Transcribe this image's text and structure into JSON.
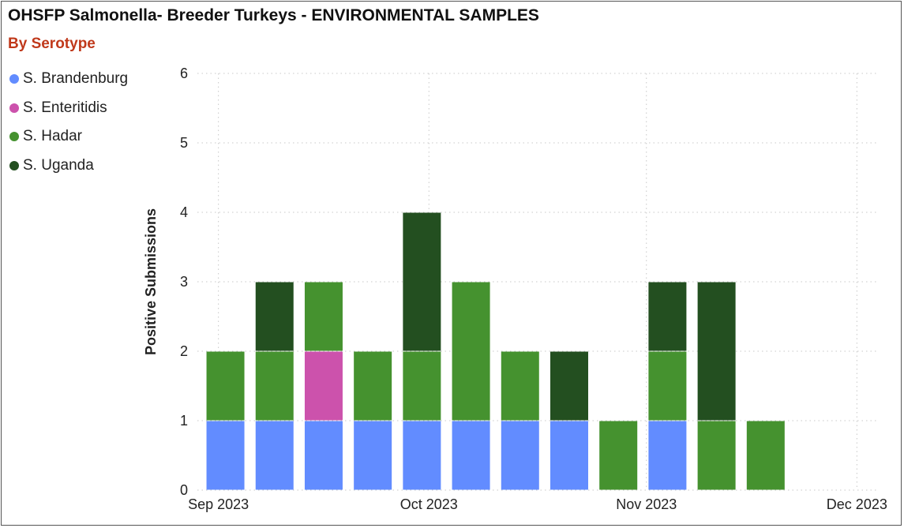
{
  "title": "OHSFP Salmonella- Breeder Turkeys - ENVIRONMENTAL SAMPLES",
  "subtitle": "By Serotype",
  "colors": {
    "subtitle": "#c0391b",
    "gridline": "#c8c8c8"
  },
  "legend": [
    {
      "label": "S. Brandenburg",
      "color": "#628cff"
    },
    {
      "label": "S. Enteritidis",
      "color": "#cc52ac"
    },
    {
      "label": "S. Hadar",
      "color": "#45922f"
    },
    {
      "label": "S. Uganda",
      "color": "#234f20"
    }
  ],
  "chart_data": {
    "type": "bar",
    "stacked": true,
    "title": "OHSFP Salmonella- Breeder Turkeys - ENVIRONMENTAL SAMPLES",
    "subtitle": "By Serotype",
    "xlabel": "",
    "ylabel": "Positive Submissions",
    "ylim": [
      0,
      6
    ],
    "yticks": [
      0,
      1,
      2,
      3,
      4,
      5,
      6
    ],
    "x_ticks": [
      {
        "date": "2023-09-01",
        "label": "Sep 2023"
      },
      {
        "date": "2023-10-01",
        "label": "Oct 2023"
      },
      {
        "date": "2023-11-01",
        "label": "Nov 2023"
      },
      {
        "date": "2023-12-01",
        "label": "Dec 2023"
      }
    ],
    "xlim": [
      "2023-08-29",
      "2023-12-04"
    ],
    "grid": true,
    "legend_position": "top-left",
    "x": [
      "2023-09-02",
      "2023-09-09",
      "2023-09-16",
      "2023-09-23",
      "2023-09-30",
      "2023-10-07",
      "2023-10-14",
      "2023-10-21",
      "2023-10-28",
      "2023-11-04",
      "2023-11-11",
      "2023-11-18"
    ],
    "series": [
      {
        "name": "S. Brandenburg",
        "values": [
          1,
          1,
          1,
          1,
          1,
          1,
          1,
          1,
          0,
          1,
          0,
          0
        ]
      },
      {
        "name": "S. Enteritidis",
        "values": [
          0,
          0,
          1,
          0,
          0,
          0,
          0,
          0,
          0,
          0,
          0,
          0
        ]
      },
      {
        "name": "S. Hadar",
        "values": [
          1,
          1,
          1,
          1,
          1,
          2,
          1,
          0,
          1,
          1,
          1,
          1
        ]
      },
      {
        "name": "S. Uganda",
        "values": [
          0,
          1,
          0,
          0,
          2,
          0,
          0,
          1,
          0,
          1,
          2,
          0
        ]
      }
    ]
  }
}
